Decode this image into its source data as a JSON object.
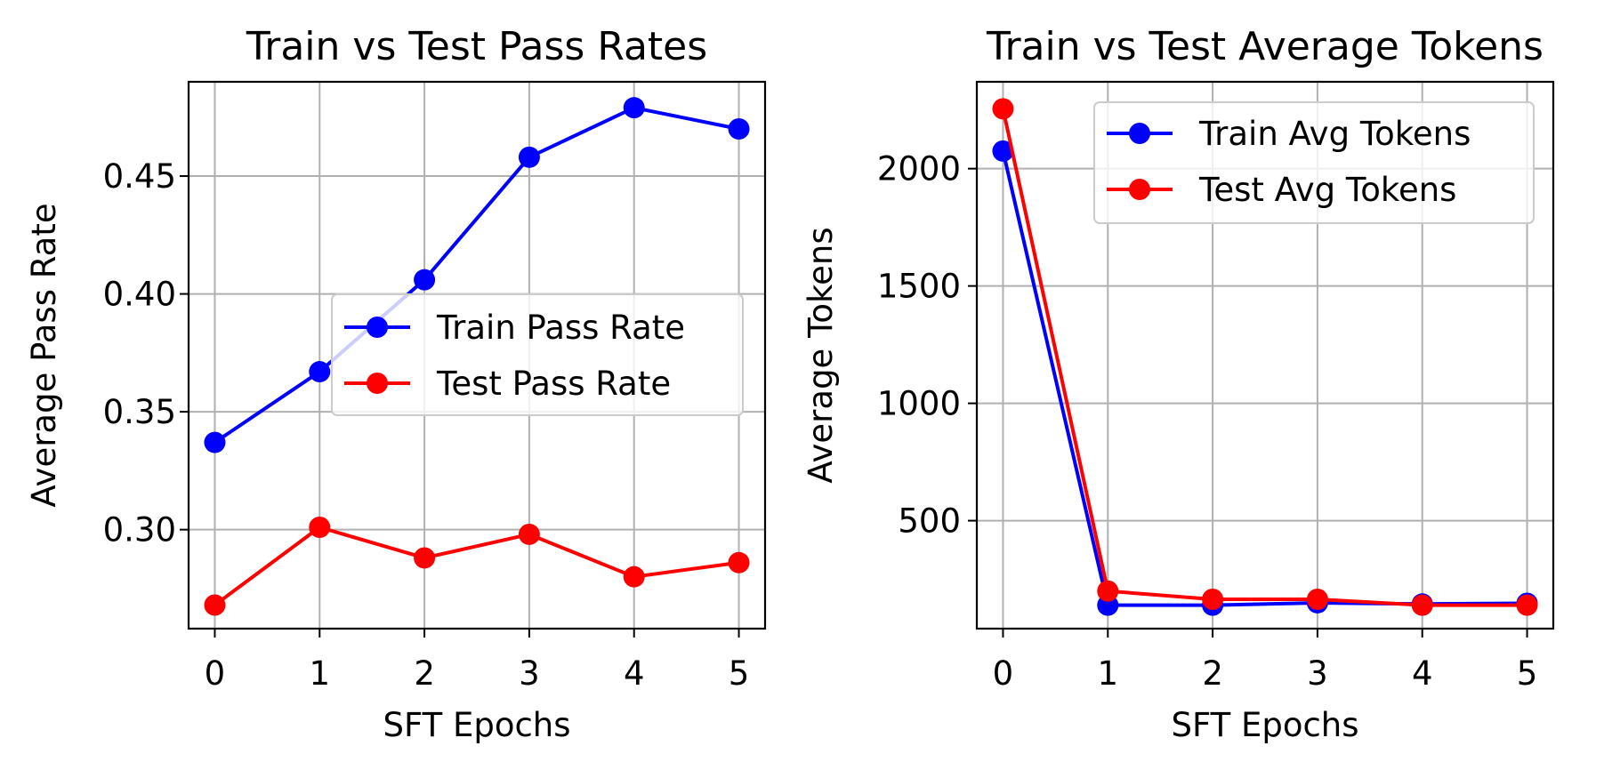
{
  "chart_data": [
    {
      "type": "line",
      "title": "Train vs Test Pass Rates",
      "xlabel": "SFT Epochs",
      "ylabel": "Average Pass Rate",
      "x": [
        0,
        1,
        2,
        3,
        4,
        5
      ],
      "xlim": [
        -0.25,
        5.25
      ],
      "ylim": [
        0.258,
        0.49
      ],
      "xticks": [
        0,
        1,
        2,
        3,
        4,
        5
      ],
      "xtick_labels": [
        "0",
        "1",
        "2",
        "3",
        "4",
        "5"
      ],
      "yticks": [
        0.3,
        0.35,
        0.4,
        0.45
      ],
      "ytick_labels": [
        "0.30",
        "0.35",
        "0.40",
        "0.45"
      ],
      "grid": true,
      "legend_position": "center-right",
      "series": [
        {
          "name": "Train Pass Rate",
          "color": "#0000ff",
          "values": [
            0.337,
            0.367,
            0.406,
            0.458,
            0.479,
            0.47
          ]
        },
        {
          "name": "Test Pass Rate",
          "color": "#ff0000",
          "values": [
            0.268,
            0.301,
            0.288,
            0.298,
            0.28,
            0.286
          ]
        }
      ]
    },
    {
      "type": "line",
      "title": "Train vs Test Average Tokens",
      "xlabel": "SFT Epochs",
      "ylabel": "Average Tokens",
      "x": [
        0,
        1,
        2,
        3,
        4,
        5
      ],
      "xlim": [
        -0.25,
        5.25
      ],
      "ylim": [
        40,
        2370
      ],
      "xticks": [
        0,
        1,
        2,
        3,
        4,
        5
      ],
      "xtick_labels": [
        "0",
        "1",
        "2",
        "3",
        "4",
        "5"
      ],
      "yticks": [
        500,
        1000,
        1500,
        2000
      ],
      "ytick_labels": [
        "500",
        "1000",
        "1500",
        "2000"
      ],
      "grid": true,
      "legend_position": "upper-right",
      "series": [
        {
          "name": "Train Avg Tokens",
          "color": "#0000ff",
          "values": [
            2075,
            140,
            140,
            150,
            145,
            148
          ]
        },
        {
          "name": "Test Avg Tokens",
          "color": "#ff0000",
          "values": [
            2255,
            200,
            165,
            165,
            140,
            140
          ]
        }
      ]
    }
  ]
}
